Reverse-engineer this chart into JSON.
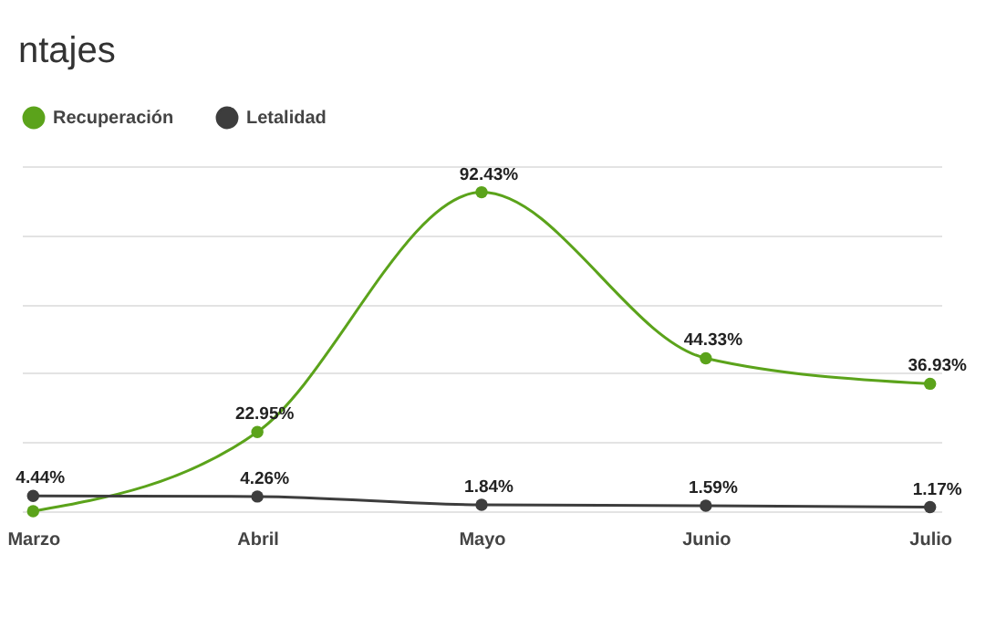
{
  "chart_data": {
    "type": "line",
    "title": "ntajes",
    "categories": [
      "Marzo",
      "Abril",
      "Mayo",
      "Junio",
      "Julio"
    ],
    "series": [
      {
        "name": "Recuperación",
        "color": "#5ba31b",
        "values": [
          0,
          22.95,
          92.43,
          44.33,
          36.93
        ],
        "value_labels": [
          null,
          "22.95%",
          "92.43%",
          "44.33%",
          "36.93%"
        ]
      },
      {
        "name": "Letalidad",
        "color": "#3d3d3d",
        "values": [
          4.44,
          4.26,
          1.84,
          1.59,
          1.17
        ],
        "value_labels": [
          "4.44%",
          "4.26%",
          "1.84%",
          "1.59%",
          "1.17%"
        ]
      }
    ],
    "tick_labels": "x",
    "grid": "y",
    "legend": "top",
    "marker": "circle",
    "line_style": "solid"
  }
}
